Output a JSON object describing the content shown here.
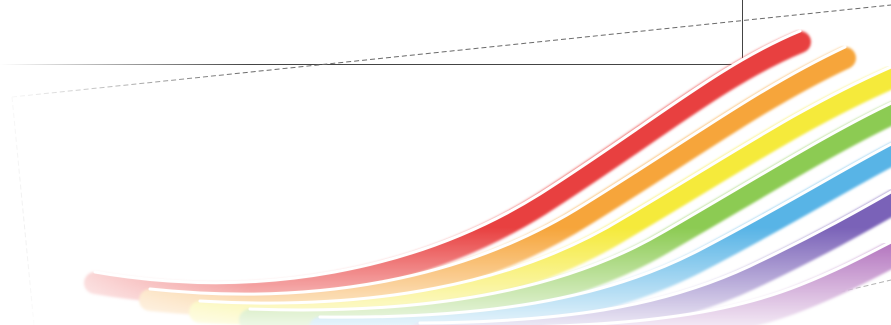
{
  "background_color": "#ffffff",
  "frame_color": "#444444",
  "dashed_outline_color": "#6a6a6a",
  "rainbow": {
    "bands": [
      {
        "name": "red",
        "color": "#e8403f"
      },
      {
        "name": "orange",
        "color": "#f6a53b"
      },
      {
        "name": "yellow",
        "color": "#f5ea3a"
      },
      {
        "name": "green",
        "color": "#8ccb52"
      },
      {
        "name": "blue",
        "color": "#58b4e6"
      },
      {
        "name": "indigo",
        "color": "#7a62b8"
      },
      {
        "name": "violet",
        "color": "#a861b5"
      }
    ],
    "separator_color": "#ffffff"
  }
}
